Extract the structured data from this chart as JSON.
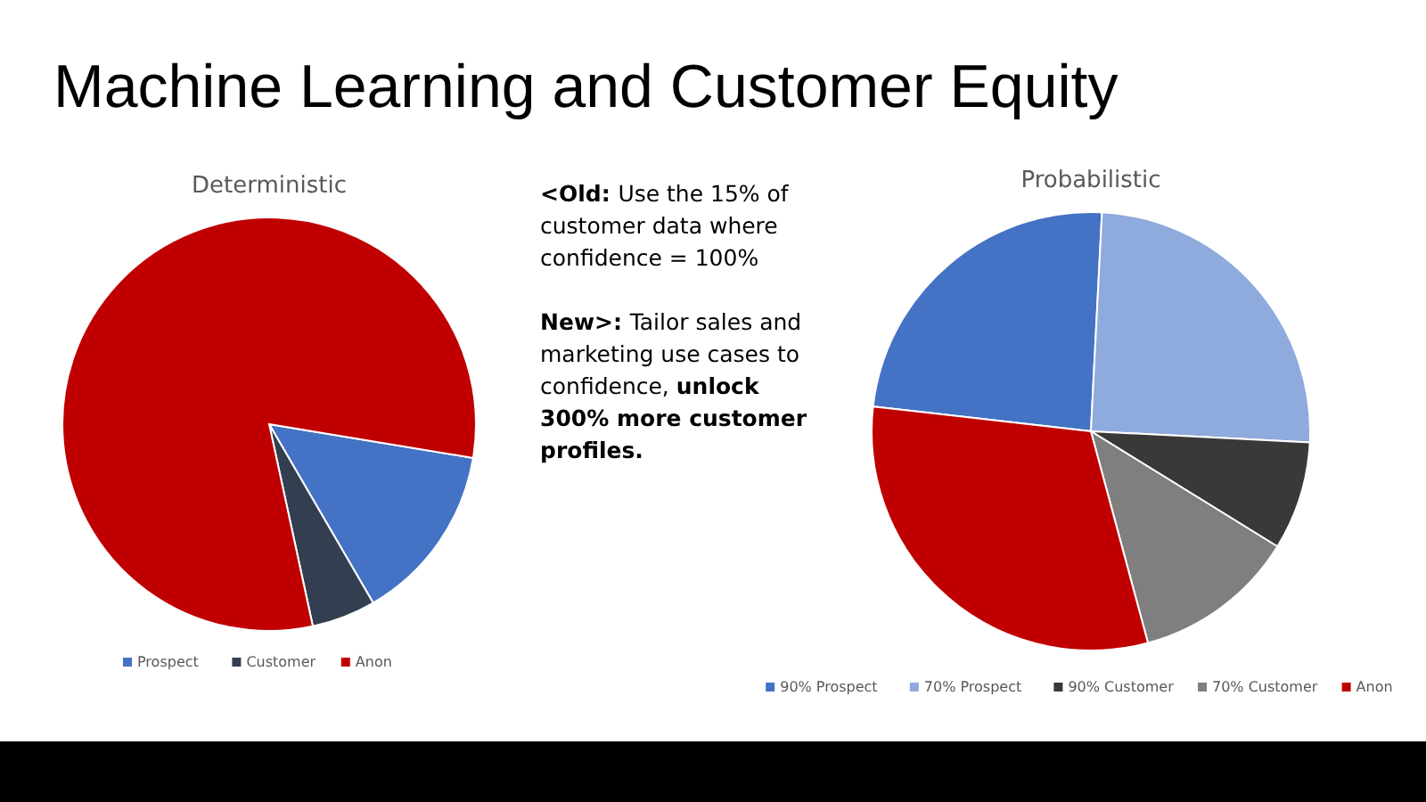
{
  "chart_data": [
    {
      "type": "pie",
      "title": "Deterministic",
      "categories": [
        "Prospect",
        "Customer",
        "Anon"
      ],
      "values": [
        14,
        5,
        81
      ],
      "colors": [
        "#4472c4",
        "#333f50",
        "#c00000"
      ],
      "legend": "bottom"
    },
    {
      "type": "other",
      "title": "Machine Learning and Customer Equity",
      "annotations": [
        "<Old:",
        "Use the 15% of customer data where confidence = 100%",
        "New>:",
        "Tailor sales and marketing use cases to confidence,",
        "unlock 300% more customer profiles."
      ]
    },
    {
      "type": "pie",
      "title": "Probabilistic",
      "categories": [
        "90% Prospect",
        "70% Prospect",
        "90% Customer",
        "70% Customer",
        "Anon"
      ],
      "values": [
        24,
        25,
        8,
        12,
        31
      ],
      "colors": [
        "#4472c4",
        "#8faadc",
        "#3b3838",
        "#7f7f7f",
        "#c00000"
      ],
      "legend": "bottom"
    }
  ]
}
